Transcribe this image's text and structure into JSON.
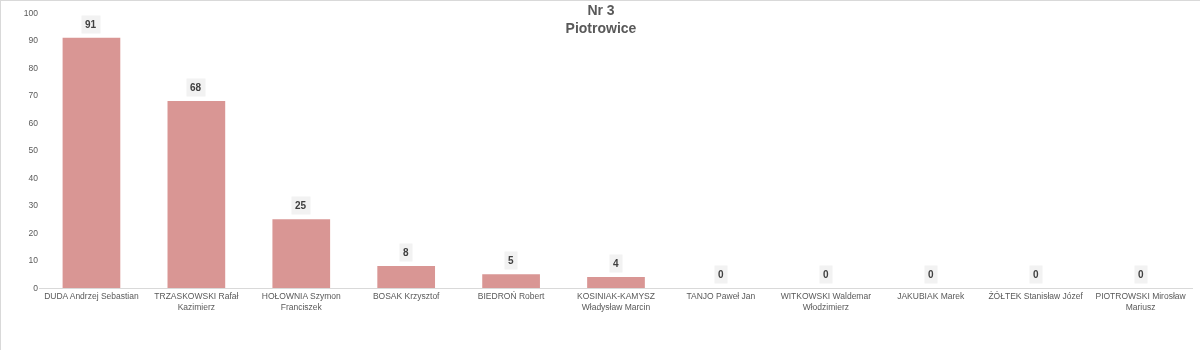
{
  "chart_data": {
    "type": "bar",
    "title": "Nr 3",
    "subtitle": "Piotrowice",
    "categories": [
      "DUDA Andrzej Sebastian",
      "TRZASKOWSKI Rafał Kazimierz",
      "HOŁOWNIA Szymon Franciszek",
      "BOSAK Krzysztof",
      "BIEDROŃ Robert",
      "KOSINIAK-KAMYSZ Władysław Marcin",
      "TANJO Paweł Jan",
      "WITKOWSKI Waldemar Włodzimierz",
      "JAKUBIAK Marek",
      "ŻÓŁTEK Stanisław Józef",
      "PIOTROWSKI Mirosław Mariusz"
    ],
    "values": [
      91,
      68,
      25,
      8,
      5,
      4,
      0,
      0,
      0,
      0,
      0
    ],
    "color": "#d99694",
    "ylim": [
      0,
      100
    ],
    "yticks": [
      0,
      10,
      20,
      30,
      40,
      50,
      60,
      70,
      80,
      90,
      100
    ],
    "grid": false,
    "data_labels": true
  }
}
